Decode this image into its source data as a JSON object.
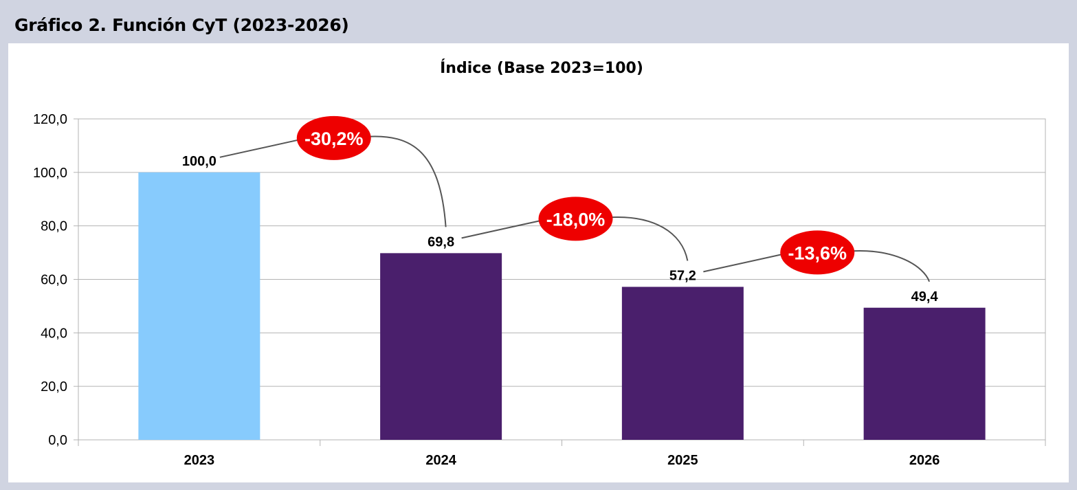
{
  "figure": {
    "title": "Gráfico 2. Función CyT (2023-2026)"
  },
  "chart_data": {
    "type": "bar",
    "title": "Índice (Base 2023=100)",
    "categories": [
      "2023",
      "2024",
      "2025",
      "2026"
    ],
    "values": [
      100.0,
      69.8,
      57.2,
      49.4
    ],
    "value_labels": [
      "100,0",
      "69,8",
      "57,2",
      "49,4"
    ],
    "ylim": [
      0,
      120
    ],
    "y_ticks": [
      "0,0",
      "20,0",
      "40,0",
      "60,0",
      "80,0",
      "100,0",
      "120,0"
    ],
    "xlabel": "",
    "ylabel": "",
    "grid": true,
    "bar_colors": [
      "#87cbfd",
      "#4a1f6c",
      "#4a1f6c",
      "#4a1f6c"
    ],
    "annotations": [
      {
        "from": "2023",
        "to": "2024",
        "label": "-30,2%"
      },
      {
        "from": "2024",
        "to": "2025",
        "label": "-18,0%"
      },
      {
        "from": "2025",
        "to": "2026",
        "label": "-13,6%"
      }
    ],
    "annotation_color": "#ee0000"
  }
}
